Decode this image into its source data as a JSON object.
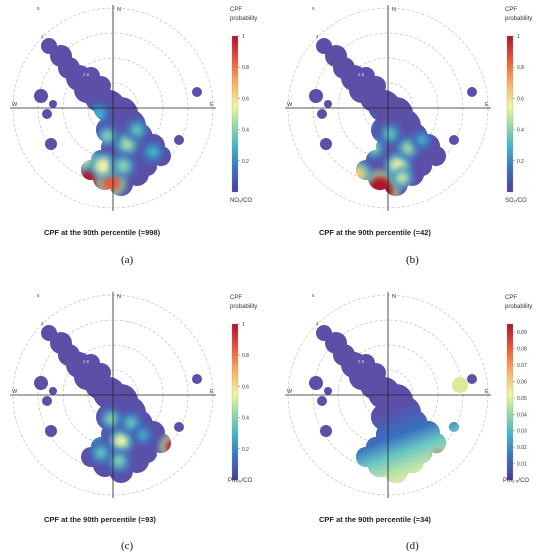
{
  "chart_data": [
    {
      "type": "heatmap",
      "panel_label": "(a)",
      "caption": "CPF at the 90th percentile (=998)",
      "colorbar": {
        "title_line1": "CPF",
        "title_line2": "probability",
        "ticks": [
          "1",
          "0.8",
          "0.6",
          "0.4",
          "0.2"
        ],
        "label": "NO₂/CO",
        "range": [
          0,
          1
        ]
      },
      "directions": {
        "north": "N",
        "east": "E",
        "west": "W"
      },
      "radial_labels": [
        "5",
        "4",
        "2.6"
      ]
    },
    {
      "type": "heatmap",
      "panel_label": "(b)",
      "caption": "CPF at the 90th percentile (=42)",
      "colorbar": {
        "title_line1": "CPF",
        "title_line2": "probability",
        "ticks": [
          "1",
          "0.8",
          "0.6",
          "0.4",
          "0.2"
        ],
        "label": "SO₂/CO",
        "range": [
          0,
          1
        ]
      },
      "directions": {
        "north": "N",
        "east": "E",
        "west": "W"
      },
      "radial_labels": [
        "5",
        "4",
        "2.6"
      ]
    },
    {
      "type": "heatmap",
      "panel_label": "(c)",
      "caption": "CPF at the 90th percentile (=93)",
      "colorbar": {
        "title_line1": "CPF",
        "title_line2": "probability",
        "ticks": [
          "1",
          "0.8",
          "0.6",
          "0.4",
          "0.2"
        ],
        "label": "PM₁₀/CO",
        "range": [
          0,
          1
        ]
      },
      "directions": {
        "north": "N",
        "east": "E",
        "west": "W"
      },
      "radial_labels": [
        "5",
        "4",
        "2.6"
      ]
    },
    {
      "type": "heatmap",
      "panel_label": "(d)",
      "caption": "CPF at the 90th percentile (=34)",
      "colorbar": {
        "title_line1": "CPF",
        "title_line2": "probability",
        "ticks": [
          "0.09",
          "0.08",
          "0.07",
          "0.06",
          "0.05",
          "0.04",
          "0.03",
          "0.02",
          "0.01"
        ],
        "label": "PM₂.₅/CO",
        "range": [
          0,
          0.095
        ]
      },
      "directions": {
        "north": "N",
        "east": "E",
        "west": "W"
      },
      "radial_labels": [
        "5",
        "4",
        "2.6"
      ]
    }
  ]
}
